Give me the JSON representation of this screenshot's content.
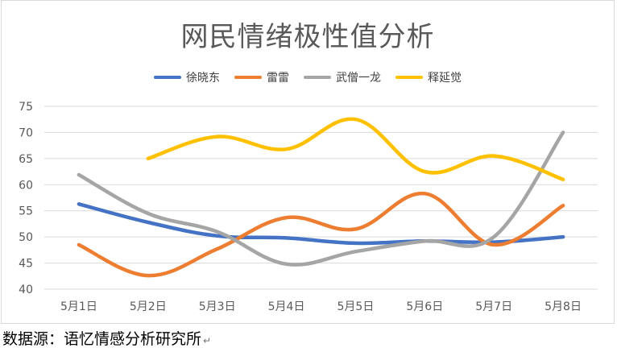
{
  "caption": "数据源：语忆情感分析研究所",
  "caption_mark": "↵",
  "chart_data": {
    "type": "line",
    "title": "网民情绪极性值分析",
    "xlabel": "",
    "ylabel": "",
    "categories": [
      "5月1日",
      "5月2日",
      "5月3日",
      "5月4日",
      "5月5日",
      "5月6日",
      "5月7日",
      "5月8日"
    ],
    "ylim": [
      40,
      75
    ],
    "yticks": [
      40,
      45,
      50,
      55,
      60,
      65,
      70,
      75
    ],
    "grid": true,
    "legend_position": "top",
    "series": [
      {
        "name": "徐晓东",
        "color": "#4472C4",
        "values": [
          56.3,
          52.8,
          50.2,
          49.8,
          48.8,
          49.2,
          49.0,
          50.0
        ]
      },
      {
        "name": "雷雷",
        "color": "#ED7D31",
        "values": [
          48.5,
          42.6,
          47.7,
          53.7,
          51.5,
          58.3,
          48.5,
          56.0
        ]
      },
      {
        "name": "武僧一龙",
        "color": "#A5A5A5",
        "values": [
          61.9,
          54.5,
          51.0,
          44.8,
          47.2,
          49.2,
          50.0,
          70.0
        ]
      },
      {
        "name": "释延觉",
        "color": "#FFC000",
        "values": [
          null,
          65.0,
          69.2,
          66.8,
          72.5,
          62.5,
          65.5,
          61.0
        ]
      }
    ]
  }
}
